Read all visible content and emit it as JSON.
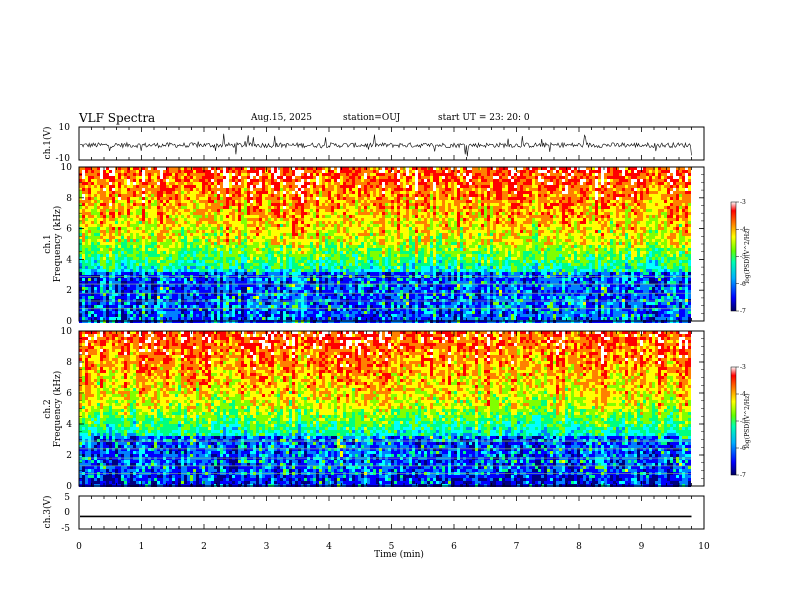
{
  "header": {
    "title": "VLF Spectra",
    "date": "Aug.15, 2025",
    "station": "station=OUJ",
    "start": "start UT =   23: 20: 0"
  },
  "colors": {
    "spectrogram_scale": [
      "#000080",
      "#0000ff",
      "#0080ff",
      "#00ffff",
      "#00ff80",
      "#80ff00",
      "#ffff00",
      "#ff8000",
      "#ff0000",
      "#ffffff"
    ]
  },
  "chart_data": [
    {
      "type": "line",
      "name": "ch1-waveform",
      "ylabel": "ch.1(V)",
      "ylim": [
        -10,
        10
      ],
      "yticks": [
        "10",
        "-10"
      ],
      "x_range_min": [
        0,
        9.8
      ],
      "description_level": "noisy waveform around about -1 V with spikes"
    },
    {
      "type": "heatmap",
      "name": "ch1-spectrogram",
      "ylabel": "ch.1",
      "ylabel2": "Frequency (kHz)",
      "ylim": [
        0,
        10
      ],
      "yticks": [
        "0",
        "2",
        "4",
        "6",
        "8",
        "10"
      ],
      "x_range_min": [
        0,
        9.8
      ],
      "colorbar": {
        "label": "log(PSD)(V^2/Hz)",
        "range": [
          -7,
          -3
        ],
        "ticks": [
          "-3",
          "-4",
          "-5",
          "-6",
          "-7"
        ]
      }
    },
    {
      "type": "heatmap",
      "name": "ch2-spectrogram",
      "ylabel": "ch.2",
      "ylabel2": "Frequency (kHz)",
      "ylim": [
        0,
        10
      ],
      "yticks": [
        "0",
        "2",
        "4",
        "6",
        "8",
        "10"
      ],
      "x_range_min": [
        0,
        9.8
      ],
      "colorbar": {
        "label": "log(PSD)(V^2/Hz)",
        "range": [
          -7,
          -3
        ],
        "ticks": [
          "-3",
          "-4",
          "-5",
          "-6",
          "-7"
        ]
      }
    },
    {
      "type": "line",
      "name": "ch3-waveform",
      "ylabel": "ch.3(V)",
      "ylim": [
        -5,
        5
      ],
      "yticks": [
        "5",
        "0",
        "-5"
      ],
      "x": [
        0,
        9.8
      ],
      "y": [
        -1.2,
        -1.2
      ]
    }
  ],
  "xaxis": {
    "label": "Time (min)",
    "range": [
      0,
      10
    ],
    "ticks": [
      "0",
      "1",
      "2",
      "3",
      "4",
      "5",
      "6",
      "7",
      "8",
      "9",
      "10"
    ]
  }
}
